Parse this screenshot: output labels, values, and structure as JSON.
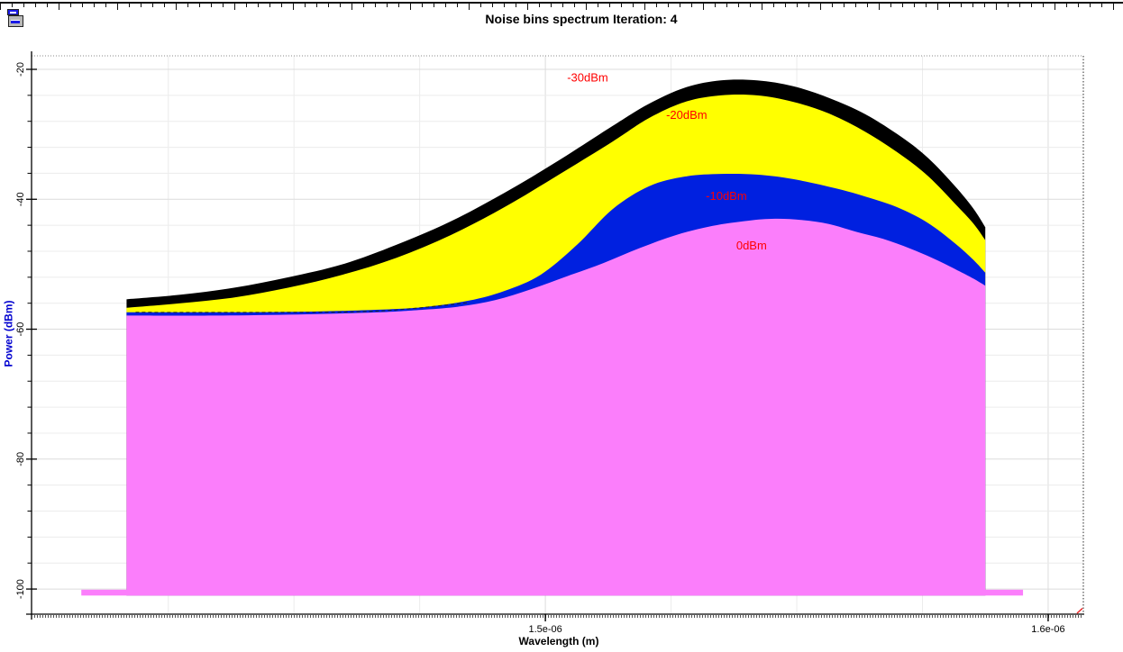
{
  "header": {
    "title": "Noise bins spectrum Iteration: 4"
  },
  "icons": {
    "document_icon": "document-icon"
  },
  "chart_data": {
    "type": "area",
    "title": "Noise bins spectrum Iteration: 4",
    "xlabel": "Wavelength (m)",
    "ylabel": "Power (dBm)",
    "xlim": [
      1.3978e-06,
      1.607e-06
    ],
    "ylim": [
      -103.87,
      -17.92
    ],
    "grid": true,
    "x_minor_step": 2.5e-08,
    "y_minor_step": 4,
    "x_ticks_major": [
      {
        "value": 1.5e-06,
        "label": "1.5e-06"
      },
      {
        "value": 1.6e-06,
        "label": "1.6e-06"
      }
    ],
    "y_ticks_major": [
      {
        "value": -20,
        "label": "-20"
      },
      {
        "value": -40,
        "label": "-40"
      },
      {
        "value": -60,
        "label": "-60"
      },
      {
        "value": -80,
        "label": "-80"
      },
      {
        "value": -100,
        "label": "-100"
      }
    ],
    "floor_dbm": -101,
    "label_color": "#ff0000",
    "series": [
      {
        "name": "-30dBm",
        "color": "#000000",
        "label": "-30dBm",
        "label_pos": [
          1.5084e-06,
          -21.9
        ],
        "points": [
          [
            1.4167e-06,
            -55.4
          ],
          [
            1.4274e-06,
            -54.7
          ],
          [
            1.4382e-06,
            -53.6
          ],
          [
            1.4489e-06,
            -52.0
          ],
          [
            1.4597e-06,
            -50.0
          ],
          [
            1.4704e-06,
            -47.0
          ],
          [
            1.4812e-06,
            -43.4
          ],
          [
            1.4919e-06,
            -39.0
          ],
          [
            1.5027e-06,
            -34.0
          ],
          [
            1.5134e-06,
            -28.7
          ],
          [
            1.5206e-06,
            -25.3
          ],
          [
            1.5278e-06,
            -22.8
          ],
          [
            1.5349e-06,
            -21.7
          ],
          [
            1.5421e-06,
            -21.7
          ],
          [
            1.5493e-06,
            -22.6
          ],
          [
            1.5564e-06,
            -24.4
          ],
          [
            1.5636e-06,
            -26.9
          ],
          [
            1.5708e-06,
            -30.4
          ],
          [
            1.5762e-06,
            -33.7
          ],
          [
            1.5815e-06,
            -38.0
          ],
          [
            1.5851e-06,
            -41.4
          ],
          [
            1.5875e-06,
            -44.3
          ]
        ]
      },
      {
        "name": "-20dBm",
        "color": "#ffff00",
        "label": "-20dBm",
        "label_pos": [
          1.5281e-06,
          -27.6
        ],
        "points": [
          [
            1.4167e-06,
            -56.7
          ],
          [
            1.4274e-06,
            -56.0
          ],
          [
            1.4382e-06,
            -55.1
          ],
          [
            1.4489e-06,
            -53.6
          ],
          [
            1.4597e-06,
            -51.6
          ],
          [
            1.4704e-06,
            -49.0
          ],
          [
            1.4812e-06,
            -45.5
          ],
          [
            1.4919e-06,
            -41.2
          ],
          [
            1.5027e-06,
            -36.2
          ],
          [
            1.5134e-06,
            -31.1
          ],
          [
            1.5206e-06,
            -27.5
          ],
          [
            1.5278e-06,
            -25.0
          ],
          [
            1.5349e-06,
            -24.0
          ],
          [
            1.5421e-06,
            -24.0
          ],
          [
            1.5493e-06,
            -25.0
          ],
          [
            1.5564e-06,
            -26.8
          ],
          [
            1.5636e-06,
            -29.6
          ],
          [
            1.5708e-06,
            -33.2
          ],
          [
            1.5762e-06,
            -36.5
          ],
          [
            1.5815e-06,
            -40.7
          ],
          [
            1.5851e-06,
            -43.7
          ],
          [
            1.5875e-06,
            -46.3
          ]
        ]
      },
      {
        "name": "-10dBm",
        "color": "#0020e0",
        "label": "-10dBm",
        "label_pos": [
          1.536e-06,
          -40.1
        ],
        "points": [
          [
            1.4167e-06,
            -57.4
          ],
          [
            1.4346e-06,
            -57.4
          ],
          [
            1.4525e-06,
            -57.3
          ],
          [
            1.4669e-06,
            -57.0
          ],
          [
            1.4758e-06,
            -56.6
          ],
          [
            1.4848e-06,
            -55.6
          ],
          [
            1.4919e-06,
            -54.1
          ],
          [
            1.4991e-06,
            -51.6
          ],
          [
            1.5063e-06,
            -47.0
          ],
          [
            1.5134e-06,
            -41.5
          ],
          [
            1.5206e-06,
            -38.0
          ],
          [
            1.5278e-06,
            -36.5
          ],
          [
            1.5349e-06,
            -36.1
          ],
          [
            1.5421e-06,
            -36.2
          ],
          [
            1.5493e-06,
            -36.9
          ],
          [
            1.5582e-06,
            -38.4
          ],
          [
            1.5654e-06,
            -40.0
          ],
          [
            1.5708e-06,
            -41.5
          ],
          [
            1.5762e-06,
            -43.7
          ],
          [
            1.5815e-06,
            -46.8
          ],
          [
            1.5851e-06,
            -49.3
          ],
          [
            1.5875e-06,
            -51.3
          ]
        ]
      },
      {
        "name": "0dBm",
        "color": "#fb7efb",
        "label": "0dBm",
        "label_pos": [
          1.541e-06,
          -47.7
        ],
        "points": [
          [
            1.4167e-06,
            -57.9
          ],
          [
            1.4346e-06,
            -57.9
          ],
          [
            1.4525e-06,
            -57.7
          ],
          [
            1.4669e-06,
            -57.4
          ],
          [
            1.4758e-06,
            -57.0
          ],
          [
            1.483e-06,
            -56.5
          ],
          [
            1.4901e-06,
            -55.5
          ],
          [
            1.4973e-06,
            -53.8
          ],
          [
            1.5045e-06,
            -51.8
          ],
          [
            1.5116e-06,
            -49.8
          ],
          [
            1.5188e-06,
            -47.5
          ],
          [
            1.526e-06,
            -45.5
          ],
          [
            1.5332e-06,
            -44.1
          ],
          [
            1.5403e-06,
            -43.3
          ],
          [
            1.5457e-06,
            -43.0
          ],
          [
            1.5511e-06,
            -43.2
          ],
          [
            1.5564e-06,
            -43.8
          ],
          [
            1.5618e-06,
            -45.0
          ],
          [
            1.5672e-06,
            -46.1
          ],
          [
            1.5726e-06,
            -47.6
          ],
          [
            1.578e-06,
            -49.4
          ],
          [
            1.5824e-06,
            -51.1
          ],
          [
            1.5851e-06,
            -52.2
          ],
          [
            1.5875e-06,
            -53.3
          ]
        ]
      }
    ],
    "base_strip": {
      "x1": 1.4077e-06,
      "x2": 1.595e-06,
      "y1": -100.1,
      "y2": -101,
      "color": "#fb7efb"
    },
    "dashed_line": {
      "color": "#222222",
      "points": [
        [
          1.4185e-06,
          -57.4
        ],
        [
          1.4453e-06,
          -57.4
        ],
        [
          1.4669e-06,
          -57.2
        ],
        [
          1.4848e-06,
          -55.9
        ]
      ]
    },
    "colors": {
      "grid_minor": "#ececec",
      "grid_major": "#dcdcdc",
      "axis": "#000000",
      "border_dotted": "#888888",
      "corner_mark": "#ee2222"
    }
  }
}
